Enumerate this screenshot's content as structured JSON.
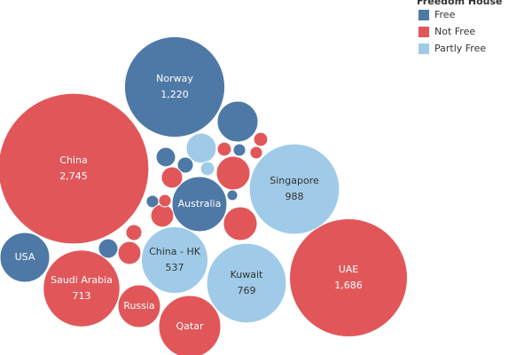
{
  "chart_data": {
    "type": "bubble",
    "legend_title": "Freedom House",
    "series": [
      {
        "name": "Free",
        "color": "#4e79a7",
        "labels": [
          "Norway",
          "USA",
          "Australia",
          null,
          null,
          null,
          null,
          null,
          null,
          null
        ],
        "values": [
          1220,
          299,
          366,
          202,
          46,
          31,
          46,
          19,
          14,
          19
        ],
        "value_labels": [
          "1,220",
          null,
          null,
          null,
          null,
          null,
          null,
          null,
          null,
          null
        ]
      },
      {
        "name": "Not Free",
        "color": "#e15759",
        "labels": [
          "China",
          "UAE",
          "Saudi Arabia",
          "Russia",
          "Qatar",
          null,
          null,
          null,
          null,
          null,
          null,
          null,
          null,
          null,
          null
        ],
        "values": [
          2745,
          1686,
          713,
          219,
          467,
          138,
          138,
          55,
          64,
          64,
          24,
          19,
          31,
          24,
          19
        ],
        "value_labels": [
          "2,745",
          "1,686",
          "713",
          null,
          null,
          null,
          null,
          null,
          null,
          null,
          null,
          null,
          null,
          null,
          null
        ]
      },
      {
        "name": "Partly Free",
        "color": "#a0cbe8",
        "labels": [
          "Singapore",
          "Kuwait",
          "China - HK",
          null,
          null
        ],
        "values": [
          988,
          769,
          537,
          110,
          24
        ],
        "value_labels": [
          "988",
          "769",
          "537",
          null,
          null
        ]
      }
    ]
  }
}
